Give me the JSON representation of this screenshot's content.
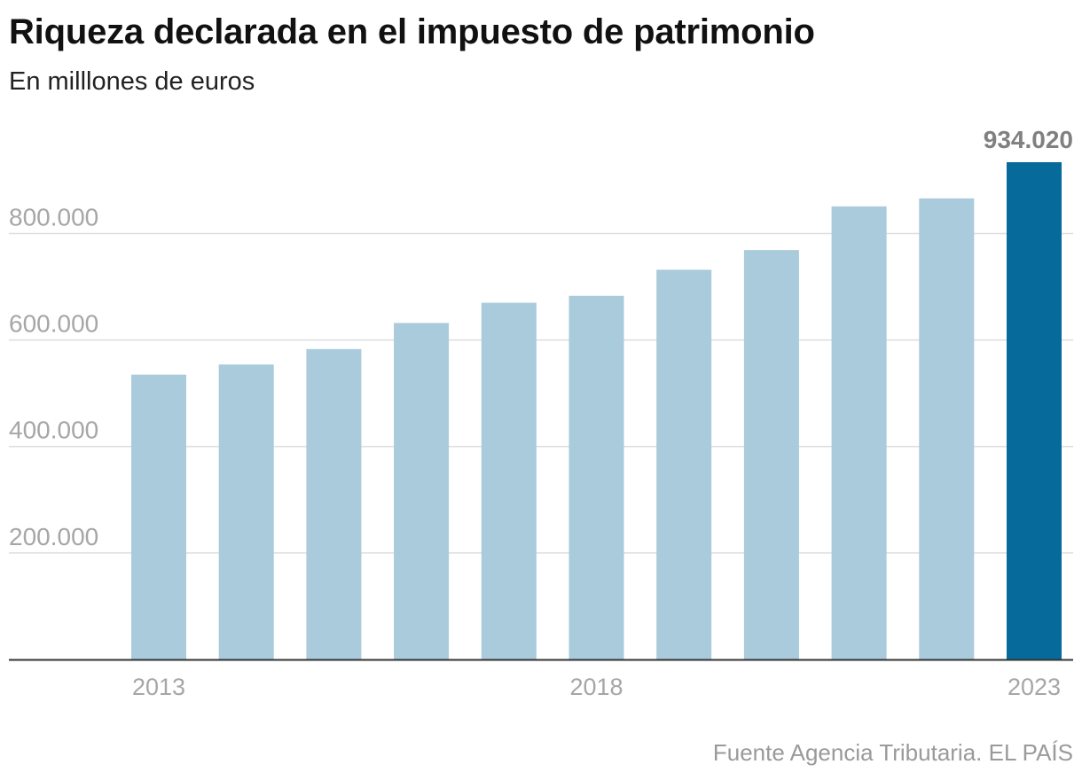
{
  "header": {
    "title": "Riqueza declarada en el impuesto de patrimonio",
    "subtitle": "En milllones de euros"
  },
  "footer": {
    "source": "Fuente Agencia Tributaria. EL PAÍS"
  },
  "colors": {
    "bar": "#a9cbdb",
    "highlight_bar": "#066a9a",
    "axis_text": "#a6a6a6",
    "grid": "#dddddd",
    "baseline": "#333333",
    "value_label": "#808080"
  },
  "chart_data": {
    "type": "bar",
    "title": "Riqueza declarada en el impuesto de patrimonio",
    "subtitle": "En milllones de euros",
    "categories": [
      "2013",
      "2014",
      "2015",
      "2016",
      "2017",
      "2018",
      "2019",
      "2020",
      "2021",
      "2022",
      "2023"
    ],
    "x_tick_labels": [
      "2013",
      "2018",
      "2023"
    ],
    "values": [
      535000,
      554000,
      583000,
      632000,
      670000,
      683000,
      732000,
      769000,
      851000,
      866000,
      934020
    ],
    "highlight_index": 10,
    "value_labels": [
      {
        "index": 10,
        "text": "934.020"
      }
    ],
    "y_ticks": [
      200000,
      400000,
      600000,
      800000
    ],
    "y_tick_labels": [
      "200.000",
      "400.000",
      "600.000",
      "800.000"
    ],
    "ylim": [
      0,
      934020
    ],
    "xlabel": "",
    "ylabel": "",
    "grid": true
  }
}
